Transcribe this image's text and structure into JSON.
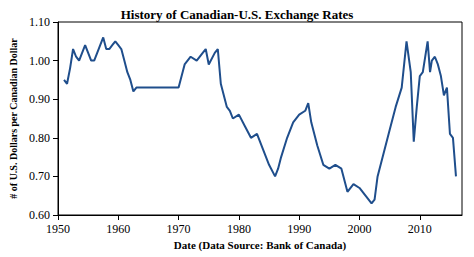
{
  "chart_data": {
    "type": "line",
    "title": "History of Canadian-U.S. Exchange Rates",
    "x_label": "Date (Data Source: Bank of Canada)",
    "y_label": "# of U.S. Dollars per Canadian Dollar",
    "x": [
      1951,
      1951.5,
      1952,
      1952.5,
      1953,
      1953.5,
      1954,
      1954.5,
      1955,
      1955.5,
      1956,
      1956.5,
      1957,
      1957.5,
      1958,
      1958.5,
      1959,
      1959.5,
      1960,
      1960.5,
      1961,
      1961.5,
      1962,
      1962.5,
      1963,
      1964,
      1965,
      1966,
      1967,
      1968,
      1969,
      1970,
      1970.5,
      1971,
      1972,
      1973,
      1974,
      1974.5,
      1975,
      1976,
      1976.5,
      1977,
      1978,
      1978.5,
      1979,
      1980,
      1981,
      1982,
      1983,
      1984,
      1985,
      1986,
      1986.5,
      1987,
      1988,
      1989,
      1990,
      1991,
      1991.5,
      1992,
      1993,
      1994,
      1995,
      1996,
      1997,
      1998,
      1999,
      2000,
      2001,
      2002,
      2002.5,
      2003,
      2004,
      2005,
      2006,
      2007,
      2007.8,
      2008.5,
      2009,
      2009.5,
      2010,
      2010.5,
      2011,
      2011.3,
      2011.7,
      2012,
      2012.5,
      2013,
      2013.5,
      2014,
      2014.5,
      2015,
      2015.5,
      2015.9,
      2016
    ],
    "values": [
      0.95,
      0.94,
      0.98,
      1.03,
      1.01,
      1.0,
      1.02,
      1.04,
      1.02,
      1.0,
      1.0,
      1.02,
      1.04,
      1.06,
      1.03,
      1.03,
      1.04,
      1.05,
      1.04,
      1.03,
      1.0,
      0.97,
      0.95,
      0.92,
      0.93,
      0.93,
      0.93,
      0.93,
      0.93,
      0.93,
      0.93,
      0.93,
      0.96,
      0.99,
      1.01,
      1.0,
      1.02,
      1.03,
      0.99,
      1.02,
      1.03,
      0.94,
      0.88,
      0.87,
      0.85,
      0.86,
      0.83,
      0.8,
      0.81,
      0.77,
      0.73,
      0.7,
      0.72,
      0.75,
      0.8,
      0.84,
      0.86,
      0.87,
      0.89,
      0.84,
      0.78,
      0.73,
      0.72,
      0.73,
      0.72,
      0.66,
      0.68,
      0.67,
      0.65,
      0.63,
      0.64,
      0.7,
      0.76,
      0.82,
      0.88,
      0.93,
      1.05,
      0.97,
      0.79,
      0.88,
      0.96,
      0.97,
      1.02,
      1.05,
      0.97,
      1.0,
      1.01,
      0.99,
      0.96,
      0.91,
      0.93,
      0.81,
      0.8,
      0.72,
      0.7
    ],
    "color": "#1f4e8c",
    "xlim": [
      1950,
      2017
    ],
    "xticks": [
      1950,
      1960,
      1970,
      1980,
      1990,
      2000,
      2010
    ],
    "ylim": [
      0.6,
      1.1
    ],
    "yticks": [
      {
        "value": 0.6,
        "label": "0.60"
      },
      {
        "value": 0.7,
        "label": "0.70"
      },
      {
        "value": 0.8,
        "label": "0.80"
      },
      {
        "value": 0.9,
        "label": "0.90"
      },
      {
        "value": 1.0,
        "label": "1.00"
      },
      {
        "value": 1.1,
        "label": "1.10"
      }
    ],
    "grid": false
  }
}
